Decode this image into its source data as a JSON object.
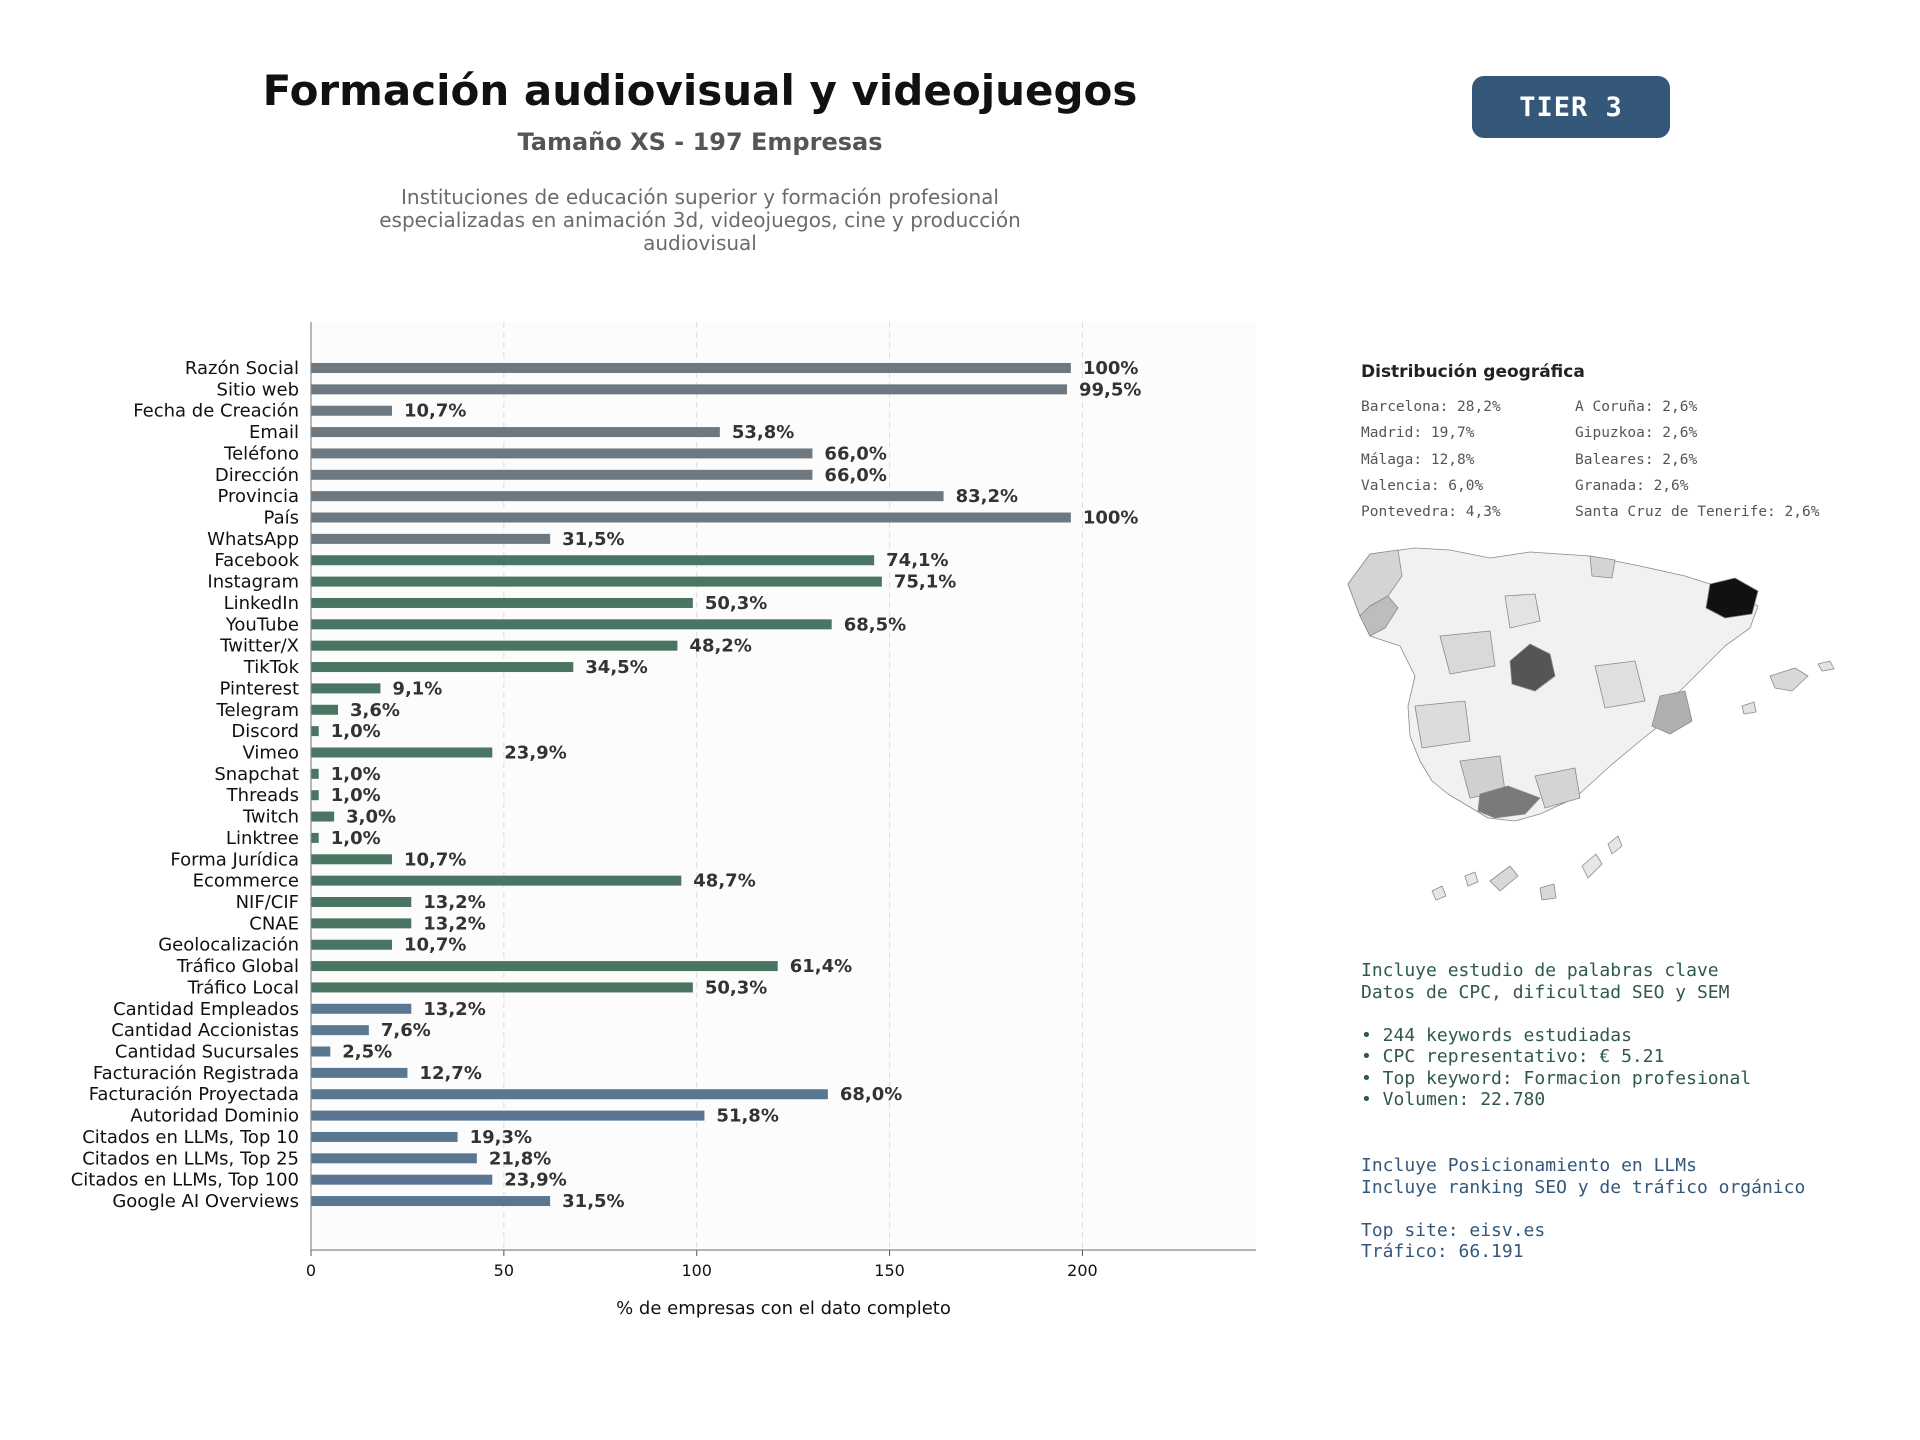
{
  "header": {
    "title": "Formación audiovisual y videojuegos",
    "subtitle": "Tamaño XS - 197 Empresas",
    "description": [
      "Instituciones de educación superior y formación profesional",
      "especializadas en animación 3d, videojuegos, cine y producción",
      "audiovisual"
    ]
  },
  "tier_badge": "TIER 3",
  "chart_data": {
    "type": "bar",
    "orientation": "horizontal",
    "xlabel": "% de empresas con el dato completo",
    "xlim": [
      0,
      245
    ],
    "xticks": [
      0,
      50,
      100,
      150,
      200
    ],
    "grid": "x-dashed",
    "categories": [
      "Razón Social",
      "Sitio web",
      "Fecha de Creación",
      "Email",
      "Teléfono",
      "Dirección",
      "Provincia",
      "País",
      "WhatsApp",
      "Facebook",
      "Instagram",
      "LinkedIn",
      "YouTube",
      "Twitter/X",
      "TikTok",
      "Pinterest",
      "Telegram",
      "Discord",
      "Vimeo",
      "Snapchat",
      "Threads",
      "Twitch",
      "Linktree",
      "Forma Jurídica",
      "Ecommerce",
      "NIF/CIF",
      "CNAE",
      "Geolocalización",
      "Tráfico Global",
      "Tráfico Local",
      "Cantidad Empleados",
      "Cantidad Accionistas",
      "Cantidad Sucursales",
      "Facturación Registrada",
      "Facturación Proyectada",
      "Autoridad Dominio",
      "Citados en LLMs, Top 10",
      "Citados en LLMs, Top 25",
      "Citados en LLMs, Top 100",
      "Google AI Overviews"
    ],
    "values": [
      197,
      196,
      21,
      106,
      130,
      130,
      164,
      197,
      62,
      146,
      148,
      99,
      135,
      95,
      68,
      18,
      7,
      2,
      47,
      2,
      2,
      6,
      2,
      21,
      96,
      26,
      26,
      21,
      121,
      99,
      26,
      15,
      5,
      25,
      134,
      102,
      38,
      43,
      47,
      62
    ],
    "labels": [
      "100%",
      "99,5%",
      "10,7%",
      "53,8%",
      "66,0%",
      "66,0%",
      "83,2%",
      "100%",
      "31,5%",
      "74,1%",
      "75,1%",
      "50,3%",
      "68,5%",
      "48,2%",
      "34,5%",
      "9,1%",
      "3,6%",
      "1,0%",
      "23,9%",
      "1,0%",
      "1,0%",
      "3,0%",
      "1,0%",
      "10,7%",
      "48,7%",
      "13,2%",
      "13,2%",
      "10,7%",
      "61,4%",
      "50,3%",
      "13,2%",
      "7,6%",
      "2,5%",
      "12,7%",
      "68,0%",
      "51,8%",
      "19,3%",
      "21,8%",
      "23,9%",
      "31,5%"
    ],
    "groups": [
      {
        "color": "#6e7881",
        "count": 9
      },
      {
        "color": "#4a7563",
        "count": 21
      },
      {
        "color": "#5a7792",
        "count": 10
      }
    ]
  },
  "geo": {
    "title": "Distribución geográfica",
    "left_column": [
      "Barcelona: 28,2%",
      "Madrid: 19,7%",
      "Málaga: 12,8%",
      "Valencia: 6,0%",
      "Pontevedra: 4,3%"
    ],
    "right_column": [
      "A Coruña: 2,6%",
      "Gipuzkoa: 2,6%",
      "Baleares: 2,6%",
      "Granada: 2,6%",
      "Santa Cruz de Tenerife: 2,6%"
    ]
  },
  "seo_info": [
    "Incluye estudio de palabras clave",
    "Datos de CPC, dificultad SEO y SEM",
    "",
    "• 244 keywords estudiadas",
    "• CPC representativo: € 5.21",
    "• Top keyword: Formacion profesional",
    "• Volumen: 22.780"
  ],
  "llm_info": [
    "Incluye Posicionamiento en LLMs",
    "Incluye ranking SEO y de tráfico orgánico",
    "",
    "Top site: eisv.es",
    "Tráfico: 66.191"
  ],
  "colors": {
    "tier_badge": "#35587a",
    "seo_text": "#2f5a46",
    "llm_text": "#35587a"
  }
}
